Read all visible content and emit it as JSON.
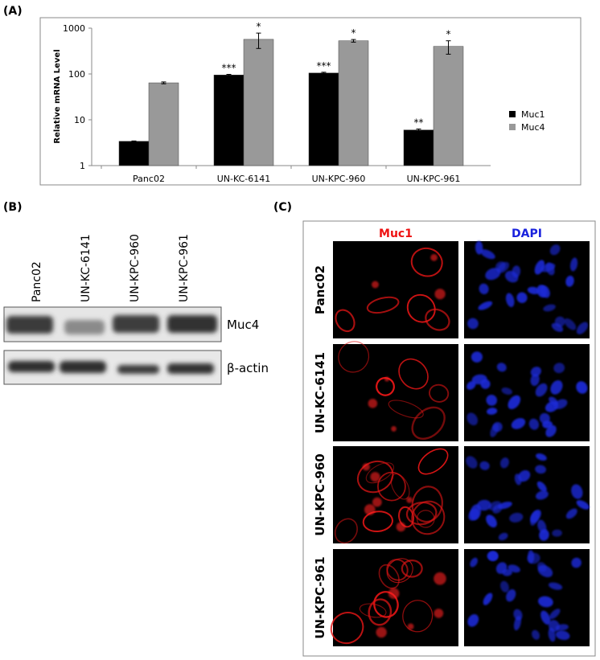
{
  "panel_labels": [
    "(A)",
    "(B)",
    "(C)"
  ],
  "chart_data": {
    "type": "bar",
    "y_label": "Relative mRNA Level",
    "categories": [
      "Panc02",
      "UN-KC-6141",
      "UN-KPC-960",
      "UN-KPC-961"
    ],
    "series": [
      {
        "name": "Muc1",
        "color": "#000000",
        "values": [
          3.4,
          95,
          105,
          6
        ],
        "errors": [
          0.05,
          3,
          4,
          0.3
        ],
        "significance": [
          null,
          "***",
          "***",
          "**"
        ]
      },
      {
        "name": "Muc4",
        "color": "#999999",
        "values": [
          64,
          570,
          530,
          400
        ],
        "errors": [
          3,
          210,
          35,
          130
        ],
        "significance": [
          null,
          "*",
          "*",
          "*"
        ]
      }
    ],
    "log_scale": true,
    "ylim": [
      1,
      1000
    ],
    "yticks": [
      1,
      10,
      100,
      1000
    ],
    "grid": false,
    "legend": "right"
  },
  "blot": {
    "lanes": [
      "Panc02",
      "UN-KC-6141",
      "UN-KPC-960",
      "UN-KPC-961"
    ],
    "rows": [
      "Muc4",
      "β-actin"
    ]
  },
  "immunofluorescence": {
    "stains": [
      "Muc1",
      "DAPI"
    ],
    "rows": [
      "Panc02",
      "UN-KC-6141",
      "UN-KPC-960",
      "UN-KPC-961"
    ]
  }
}
